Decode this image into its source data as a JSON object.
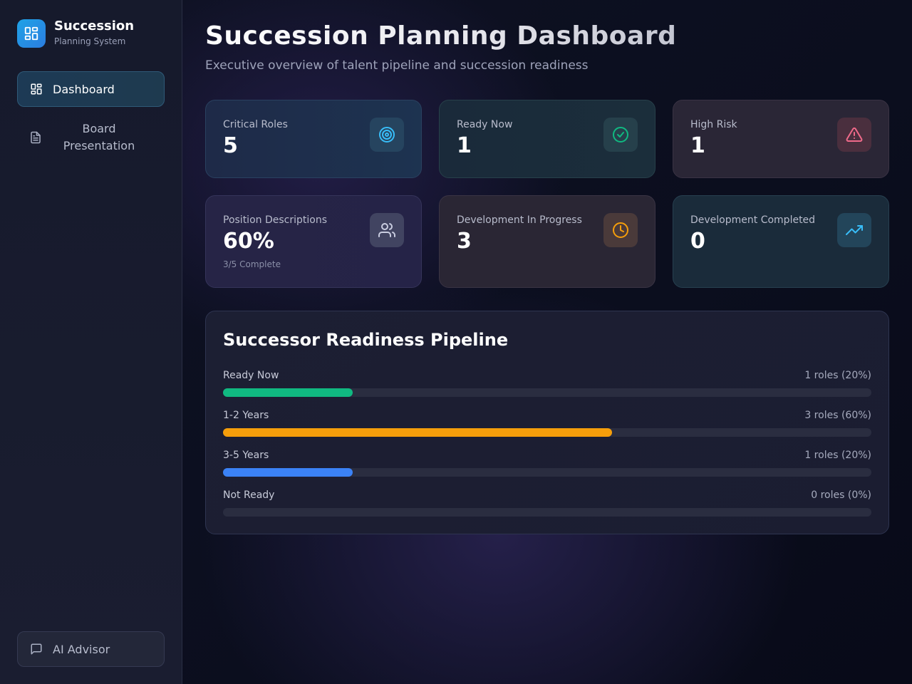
{
  "sidebar": {
    "brand_title": "Succession",
    "brand_subtitle": "Planning System",
    "nav": {
      "dashboard": "Dashboard",
      "board_presentation": "Board Presentation",
      "ai_advisor": "AI Advisor"
    }
  },
  "header": {
    "title": "Succession Planning Dashboard",
    "subtitle": "Executive overview of talent pipeline and succession readiness"
  },
  "cards": {
    "critical_roles": {
      "label": "Critical Roles",
      "value": "5",
      "icon": "target-icon",
      "color": "#38bdf8"
    },
    "ready_now": {
      "label": "Ready Now",
      "value": "1",
      "icon": "check-circle-icon",
      "color": "#10b981"
    },
    "high_risk": {
      "label": "High Risk",
      "value": "1",
      "icon": "alert-triangle-icon",
      "color": "#f06a8a"
    },
    "position_descriptions": {
      "label": "Position Descriptions",
      "value": "60%",
      "note": "3/5 Complete",
      "icon": "users-icon",
      "color": "#c9cde0"
    },
    "development_in_progress": {
      "label": "Development In Progress",
      "value": "3",
      "icon": "clock-icon",
      "color": "#f59e0b"
    },
    "development_completed": {
      "label": "Development Completed",
      "value": "0",
      "icon": "trending-up-icon",
      "color": "#38bdf8"
    }
  },
  "pipeline": {
    "title": "Successor Readiness Pipeline",
    "stages": [
      {
        "label": "Ready Now",
        "count": "1 roles (20%)",
        "percent": 20,
        "color": "#10b981"
      },
      {
        "label": "1-2 Years",
        "count": "3 roles (60%)",
        "percent": 60,
        "color": "#f59e0b"
      },
      {
        "label": "3-5 Years",
        "count": "1 roles (20%)",
        "percent": 20,
        "color": "#3b82f6"
      },
      {
        "label": "Not Ready",
        "count": "0 roles (0%)",
        "percent": 0,
        "color": "#6b7280"
      }
    ]
  }
}
